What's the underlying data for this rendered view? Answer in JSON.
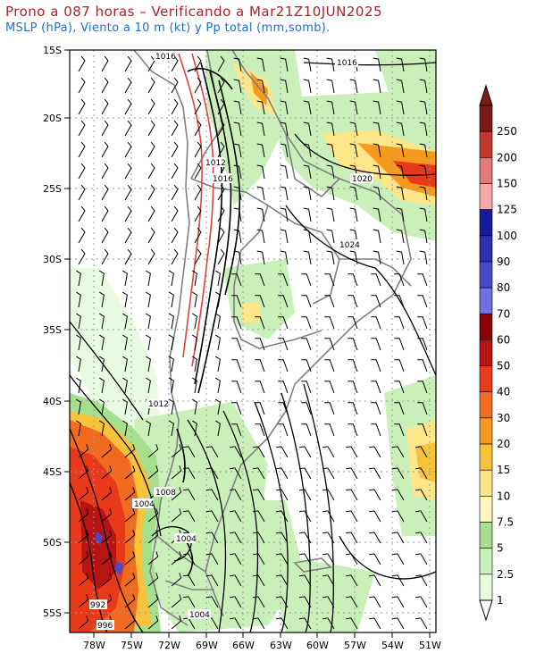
{
  "header": {
    "title": "Prono a 087 horas – Verificando a Mar21Z10JUN2025",
    "subtitle": "MSLP (hPa), Viento a 10 m (kt) y Pp total (mm,somb)."
  },
  "map": {
    "lat_labels": [
      "15S",
      "20S",
      "25S",
      "30S",
      "35S",
      "40S",
      "45S",
      "50S",
      "55S"
    ],
    "lon_labels": [
      "78W",
      "75W",
      "72W",
      "69W",
      "66W",
      "63W",
      "60W",
      "57W",
      "54W",
      "51W"
    ],
    "isobar_labels": [
      "1016",
      "1016",
      "1012",
      "1016",
      "1020",
      "1024",
      "1012",
      "1008",
      "1004",
      "1004",
      "992",
      "996",
      "1004"
    ]
  },
  "colorbar": {
    "labels": [
      "250",
      "200",
      "150",
      "125",
      "100",
      "90",
      "80",
      "70",
      "60",
      "50",
      "40",
      "30",
      "20",
      "15",
      "10",
      "7.5",
      "5",
      "2.5",
      "1"
    ],
    "colors": [
      "#7b1a1a",
      "#c0392b",
      "#e27a7a",
      "#f4aaaa",
      "#1a1a9c",
      "#3030b0",
      "#4a4ac8",
      "#7070e0",
      "#8b0000",
      "#b81414",
      "#e83a1a",
      "#f06a20",
      "#f59a1f",
      "#f8c23a",
      "#fde58a",
      "#fff6c0",
      "#a6e08e",
      "#c8f0b8",
      "#e8fae0"
    ]
  }
}
